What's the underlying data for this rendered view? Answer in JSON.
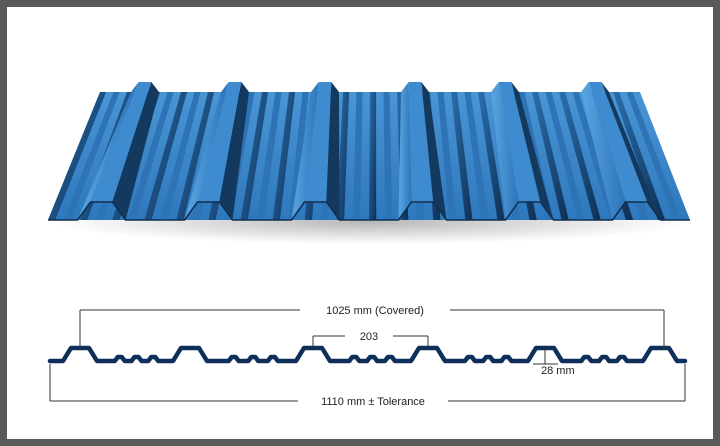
{
  "colors": {
    "sheet_top": "#3a86c8",
    "sheet_dark": "#143a63",
    "sheet_mid": "#2668a8",
    "profile_stroke": "#0d2f5a",
    "dimension_line": "#333333",
    "frame": "#5a5a5a"
  },
  "rendering": {
    "name": "corrugated-roof-sheet-illustration",
    "rib_count": 6
  },
  "profile": {
    "name": "trapezoidal-sheet-cross-section",
    "rib_count": 6
  },
  "dimensions": {
    "covered_width": "1025 mm (Covered)",
    "rib_pitch": "203",
    "rib_height": "28 mm",
    "overall_width": "1110 mm ± Tolerance"
  }
}
